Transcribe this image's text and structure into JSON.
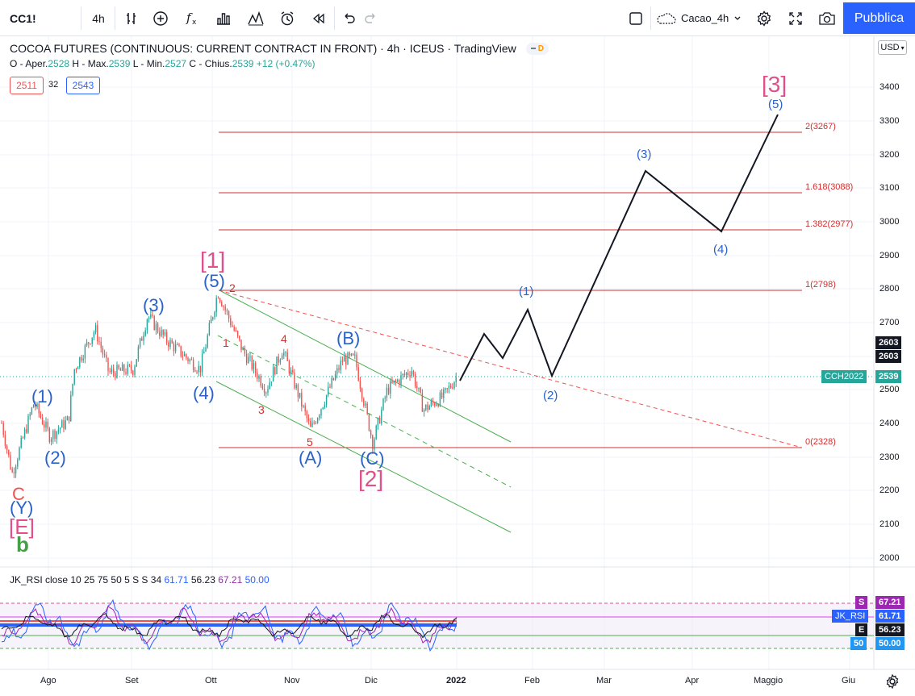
{
  "toolbar": {
    "symbol": "CC1!",
    "interval": "4h",
    "layout_name": "Cacao_4h",
    "publish_label": "Pubblica"
  },
  "legend": {
    "title": "COCOA FUTURES (CONTINUOUS: CURRENT CONTRACT IN FRONT) · 4h · ICEUS · TradingView",
    "badge_d": "D",
    "open_label": "O - Aper.",
    "open": "2528",
    "high_label": "H - Max.",
    "high": "2539",
    "low_label": "L - Min.",
    "low": "2527",
    "close_label": "C - Chius.",
    "close": "2539",
    "change": "+12 (+0.47%)",
    "bid": "2511",
    "spread": "32",
    "ask": "2543"
  },
  "price_axis": {
    "currency": "USD",
    "ticks": [
      "3400",
      "3300",
      "3200",
      "3100",
      "3000",
      "2900",
      "2800",
      "2700",
      "2600",
      "2500",
      "2400",
      "2300",
      "2200",
      "2100",
      "2000"
    ],
    "tag_high1": "2603",
    "tag_high2": "2603",
    "symbol_tag": "CCH2022",
    "last_price": "2539"
  },
  "fib_levels": [
    {
      "label": "2(3267)",
      "value": 3267
    },
    {
      "label": "1.618(3088)",
      "value": 3088
    },
    {
      "label": "1.382(2977)",
      "value": 2977
    },
    {
      "label": "1(2798)",
      "value": 2798
    },
    {
      "label": "0(2328)",
      "value": 2328
    }
  ],
  "wave_labels": {
    "w1_big": "[1]",
    "w2_big": "[2]",
    "w3_big": "[3]",
    "e_big": "[E]",
    "p1": "(1)",
    "p2": "(2)",
    "p3": "(3)",
    "p4": "(4)",
    "p5": "(5)",
    "pa": "(A)",
    "pb": "(B)",
    "pc": "(C)",
    "py": "(Y)",
    "c": "C",
    "b": "b",
    "r1": "1",
    "r2": "2",
    "r3": "3",
    "r4": "4",
    "r5": "5",
    "f1": "(1)",
    "f2": "(2)",
    "f3": "(3)",
    "f4": "(4)",
    "f5": "(5)"
  },
  "rsi": {
    "legend": "JK_RSI close 10 25 75 50 5 S S 34",
    "v1": "61.71",
    "v2": "56.23",
    "v3": "67.21",
    "v4": "50.00",
    "tag_s_label": "S",
    "tag_s": "67.21",
    "tag_jk_label": "JK_RSI",
    "tag_jk": "61.71",
    "tag_e_label": "E",
    "tag_e": "56.23",
    "tag_50_label": "50",
    "tag_50": "50.00"
  },
  "time_axis": [
    "Ago",
    "Set",
    "Ott",
    "Nov",
    "Dic",
    "2022",
    "Feb",
    "Mar",
    "Apr",
    "Maggio",
    "Giu"
  ],
  "colors": {
    "accent": "#2962ff",
    "up": "#26a69a",
    "down": "#ef5350",
    "wave_blue": "#2962c9",
    "wave_pink": "#e0508a",
    "fib_red": "#d32f2f",
    "channel_green": "#4caf50"
  }
}
